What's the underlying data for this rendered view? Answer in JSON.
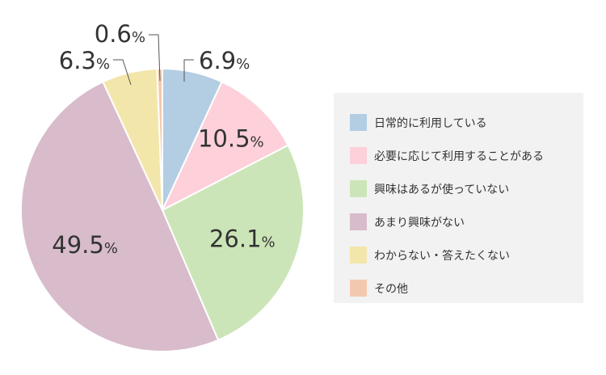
{
  "chart_data": {
    "type": "pie",
    "categories": [
      "日常的に利用している",
      "必要に応じて利用することがある",
      "興味はあるが使っていない",
      "あまり興味がない",
      "わからない・答えたくない",
      "その他"
    ],
    "values": [
      6.9,
      10.5,
      26.1,
      49.5,
      6.3,
      0.6
    ],
    "value_labels": [
      "6.9",
      "10.5",
      "26.1",
      "49.5",
      "6.3",
      "0.6"
    ],
    "unit": "%",
    "colors": [
      "#b3cde3",
      "#fdd0da",
      "#cce5b8",
      "#d8bccb",
      "#f3e6aa",
      "#f3c9ae"
    ],
    "legend_position": "right"
  }
}
